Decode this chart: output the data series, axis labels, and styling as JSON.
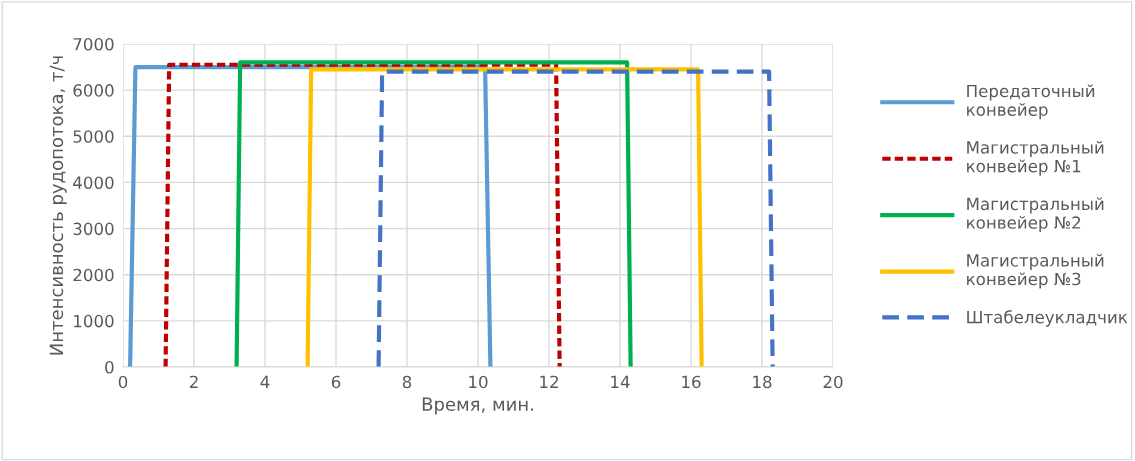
{
  "chart_data": {
    "type": "line",
    "xlabel": "Время, мин.",
    "ylabel": "Интенсивность рудопотока, т/ч",
    "xlim": [
      0,
      20
    ],
    "xticks": [
      0,
      2,
      4,
      6,
      8,
      10,
      12,
      14,
      16,
      18,
      20
    ],
    "ylim": [
      0,
      7000
    ],
    "yticks": [
      0,
      1000,
      2000,
      3000,
      4000,
      5000,
      6000,
      7000
    ],
    "grid": true,
    "legend": "right",
    "marker": "none",
    "series": [
      {
        "name": "Передаточный\nконвейер",
        "color": "#5b9bd5",
        "line_style": "solid",
        "x": [
          0.2,
          0.35,
          10.2,
          10.35
        ],
        "values": [
          0,
          6500,
          6500,
          0
        ]
      },
      {
        "name": "Магистральный\nконвейер №1",
        "color": "#c00000",
        "line_style": "dotted",
        "x": [
          1.2,
          1.3,
          12.2,
          12.3
        ],
        "values": [
          0,
          6550,
          6550,
          0
        ]
      },
      {
        "name": "Магистральный\nконвейер №2",
        "color": "#00b050",
        "line_style": "solid",
        "x": [
          3.2,
          3.3,
          14.2,
          14.3
        ],
        "values": [
          0,
          6600,
          6600,
          0
        ]
      },
      {
        "name": "Магистральный\nконвейер №3",
        "color": "#ffc000",
        "line_style": "solid",
        "x": [
          5.2,
          5.3,
          16.2,
          16.3
        ],
        "values": [
          0,
          6450,
          6450,
          0
        ]
      },
      {
        "name": "Штабелеукладчик",
        "color": "#4472c4",
        "line_style": "dashed",
        "x": [
          7.2,
          7.3,
          18.2,
          18.3
        ],
        "values": [
          0,
          6400,
          6400,
          0
        ]
      }
    ]
  }
}
